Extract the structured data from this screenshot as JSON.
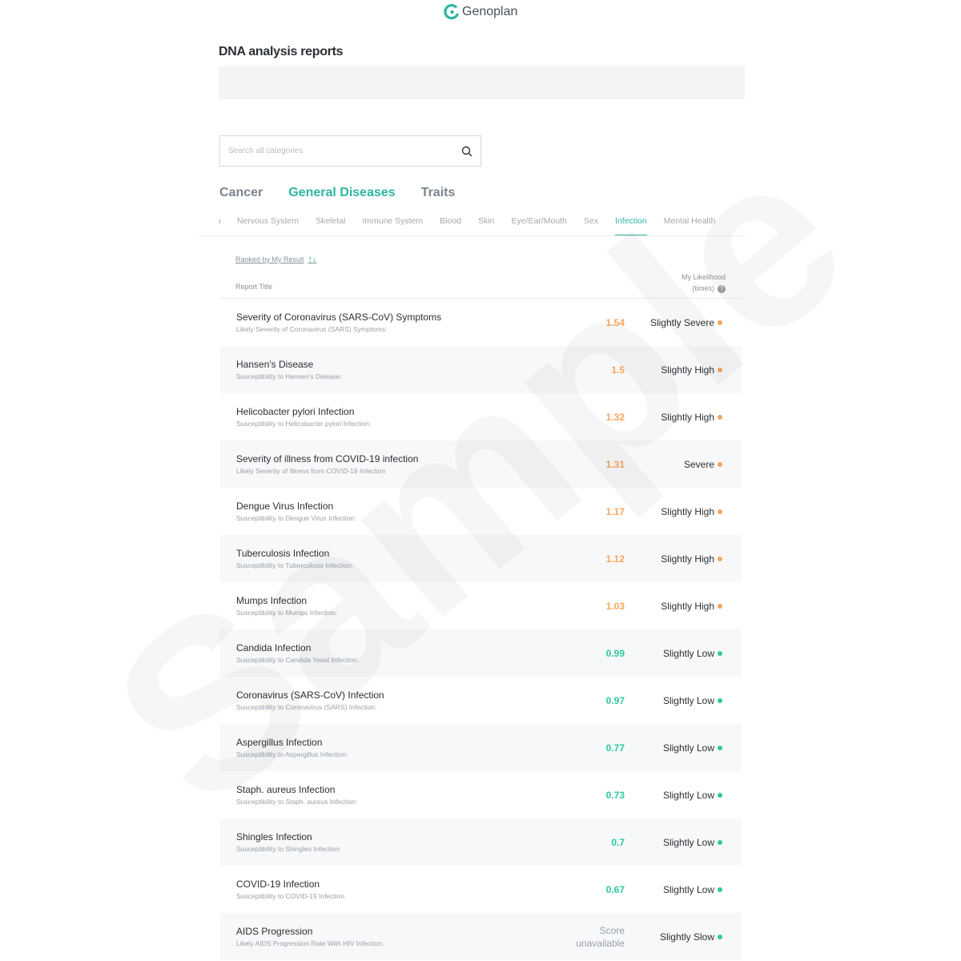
{
  "brand": {
    "name": "Genoplan",
    "accent": "#2fb5a3"
  },
  "watermark": "Sample",
  "page_title": "DNA analysis reports",
  "search": {
    "placeholder": "Search all categories",
    "value": ""
  },
  "main_tabs": [
    {
      "label": "Cancer"
    },
    {
      "label": "General Diseases",
      "active": true
    },
    {
      "label": "Traits"
    }
  ],
  "sub_tabs": [
    {
      "label": "ı"
    },
    {
      "label": "Nervous System"
    },
    {
      "label": "Skeletal"
    },
    {
      "label": "Immune System"
    },
    {
      "label": "Blood"
    },
    {
      "label": "Skin"
    },
    {
      "label": "Eye/Ear/Mouth"
    },
    {
      "label": "Sex"
    },
    {
      "label": "Infection",
      "active": true
    },
    {
      "label": "Mental Health"
    }
  ],
  "sort_label": "Ranked by My Result",
  "columns": {
    "title": "Report Title",
    "likelihood_1": "My Likelihood",
    "likelihood_2": "(times)"
  },
  "colors": {
    "high": "#f7a55a",
    "low": "#2ec99a"
  },
  "rows": [
    {
      "title": "Severity of Coronavirus (SARS-CoV) Symptoms",
      "subtitle": "Likely Severity of Coronavirus (SARS) Symptoms:",
      "value": "1.54",
      "result": "Slightly Severe",
      "level": "high"
    },
    {
      "title": "Hansen's Disease",
      "subtitle": "Susceptibility to Hansen's Disease:",
      "value": "1.5",
      "result": "Slightly High",
      "level": "high"
    },
    {
      "title": "Helicobacter pylori Infection",
      "subtitle": "Susceptibility to Helicobacter pylori Infection:",
      "value": "1.32",
      "result": "Slightly High",
      "level": "high"
    },
    {
      "title": "Severity of illness from COVID-19 infection",
      "subtitle": "Likely Severity of Illness from COVID-19 Infection",
      "value": "1.31",
      "result": "Severe",
      "level": "high"
    },
    {
      "title": "Dengue Virus Infection",
      "subtitle": "Susceptibility to Dengue Virus Infection:",
      "value": "1.17",
      "result": "Slightly High",
      "level": "high"
    },
    {
      "title": "Tuberculosis Infection",
      "subtitle": "Susceptibility to Tuberculosis Infection:",
      "value": "1.12",
      "result": "Slightly High",
      "level": "high"
    },
    {
      "title": "Mumps Infection",
      "subtitle": "Susceptibility to Mumps Infection:",
      "value": "1.03",
      "result": "Slightly High",
      "level": "high"
    },
    {
      "title": "Candida Infection",
      "subtitle": "Susceptibility to Candida Yeast Infection:",
      "value": "0.99",
      "result": "Slightly Low",
      "level": "low"
    },
    {
      "title": "Coronavirus (SARS-CoV) Infection",
      "subtitle": "Susceptibility to Coronavirus (SARS) Infection:",
      "value": "0.97",
      "result": "Slightly Low",
      "level": "low"
    },
    {
      "title": "Aspergillus Infection",
      "subtitle": "Susceptibility to Aspergillus Infection:",
      "value": "0.77",
      "result": "Slightly Low",
      "level": "low"
    },
    {
      "title": "Staph. aureus Infection",
      "subtitle": "Susceptibility to Staph. aureus Infection:",
      "value": "0.73",
      "result": "Slightly Low",
      "level": "low"
    },
    {
      "title": "Shingles Infection",
      "subtitle": "Susceptibility to Shingles Infection:",
      "value": "0.7",
      "result": "Slightly Low",
      "level": "low"
    },
    {
      "title": "COVID-19 Infection",
      "subtitle": "Susceptibility to COVID-19 Infection",
      "value": "0.67",
      "result": "Slightly Low",
      "level": "low"
    },
    {
      "title": "AIDS Progression",
      "subtitle": "Likely AIDS Progression Rate With HIV Infection:",
      "value": "Score unavailable",
      "result": "Slightly Slow",
      "level": "low",
      "unavailable": true
    }
  ]
}
